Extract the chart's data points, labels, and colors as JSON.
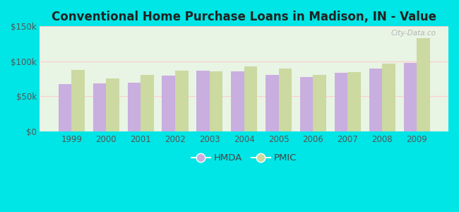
{
  "title": "Conventional Home Purchase Loans in Madison, IN - Value",
  "years": [
    1999,
    2000,
    2001,
    2002,
    2003,
    2004,
    2005,
    2006,
    2007,
    2008,
    2009
  ],
  "hmda_values": [
    68000,
    69000,
    70000,
    80000,
    87000,
    86000,
    81000,
    78000,
    84000,
    90000,
    98000
  ],
  "pmic_values": [
    88000,
    76000,
    81000,
    87000,
    86000,
    93000,
    90000,
    81000,
    85000,
    97000,
    133000
  ],
  "hmda_color": "#c9aee0",
  "pmic_color": "#ccd9a0",
  "background_top": "#f0f8f0",
  "background_bottom": "#d8ecd8",
  "outer_background": "#00e5e5",
  "ylim": [
    0,
    150000
  ],
  "yticks": [
    0,
    50000,
    100000,
    150000
  ],
  "ytick_labels": [
    "$0",
    "$50k",
    "$100k",
    "$150k"
  ],
  "bar_width": 0.38,
  "title_fontsize": 12,
  "tick_fontsize": 8.5,
  "legend_fontsize": 9.5,
  "watermark": "City-Data.co"
}
